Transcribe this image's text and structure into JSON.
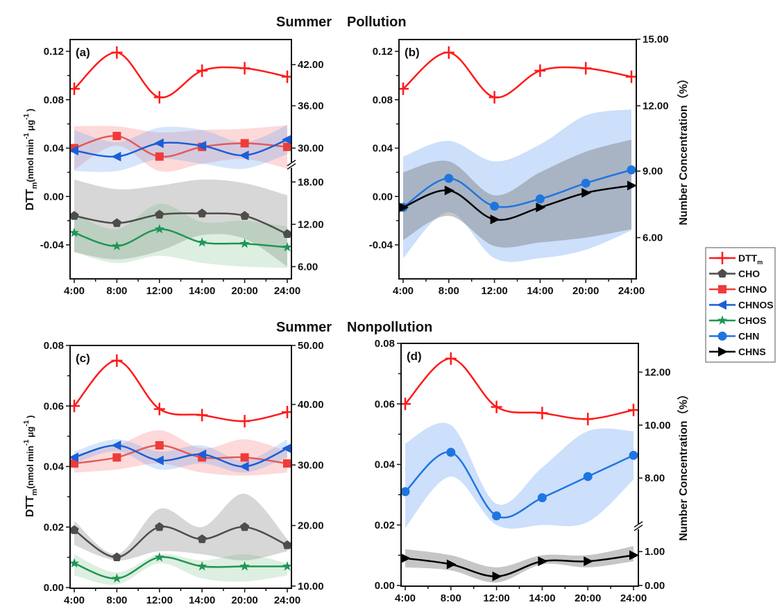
{
  "titles": {
    "top_season": "Summer",
    "top_condition": "Pollution",
    "bottom_season": "Summer",
    "bottom_condition": "Nonpollution"
  },
  "left_axis_label": {
    "main": "DTT",
    "sub": "m",
    "unit_open": "(nmol min",
    "unit_exp1": "-1",
    "unit_mid": "μg",
    "unit_exp2": "-1",
    "unit_close": ")"
  },
  "right_axis_label": "Number Concentration（%）",
  "legend": [
    {
      "name": "DTTm",
      "label": "DTT",
      "sub": "m",
      "color": "#ff1a1a",
      "marker": "plus"
    },
    {
      "name": "CHO",
      "label": "CHO",
      "color": "#4d4d4d",
      "marker": "pentagon"
    },
    {
      "name": "CHNO",
      "label": "CHNO",
      "color": "#ef3b3b",
      "marker": "square"
    },
    {
      "name": "CHNOS",
      "label": "CHNOS",
      "color": "#1a5fd6",
      "marker": "triangle-left"
    },
    {
      "name": "CHOS",
      "label": "CHOS",
      "color": "#1e9654",
      "marker": "star"
    },
    {
      "name": "CHN",
      "label": "CHN",
      "color": "#1f75e0",
      "marker": "circle"
    },
    {
      "name": "CHNS",
      "label": "CHNS",
      "color": "#000000",
      "marker": "triangle-right"
    }
  ],
  "chart_data": [
    {
      "type": "line",
      "panel": "(a)",
      "title": "Summer Pollution",
      "categories": [
        "4:00",
        "8:00",
        "12:00",
        "14:00",
        "20:00",
        "24:00"
      ],
      "ylim": [
        -0.07,
        0.13
      ],
      "yticks": [
        "0.12",
        "0.08",
        "0.04",
        "0.00",
        "-0.04"
      ],
      "ytick_values": [
        0.12,
        0.08,
        0.04,
        0.0,
        -0.04
      ],
      "right_ticks": [
        {
          "label": "42.00",
          "at_left": 0.109
        },
        {
          "label": "36.00",
          "at_left": 0.075
        },
        {
          "label": "30.00",
          "at_left": 0.04
        },
        {
          "label": "18.00",
          "at_left": 0.012
        },
        {
          "label": "12.00",
          "at_left": -0.023
        },
        {
          "label": "6.00",
          "at_left": -0.058
        }
      ],
      "right_break_at_left": 0.026,
      "series": [
        {
          "name": "CHO",
          "values": [
            -0.016,
            -0.022,
            -0.015,
            -0.014,
            -0.016,
            -0.031
          ],
          "band_lo": [
            -0.046,
            -0.052,
            -0.045,
            -0.032,
            -0.035,
            -0.058
          ],
          "band_hi": [
            0.014,
            0.006,
            0.009,
            0.014,
            0.011,
            0.001
          ]
        },
        {
          "name": "CHOS",
          "values": [
            -0.03,
            -0.041,
            -0.027,
            -0.038,
            -0.039,
            -0.042
          ],
          "band_lo": [
            -0.046,
            -0.055,
            -0.049,
            -0.055,
            -0.058,
            -0.059
          ],
          "band_hi": [
            -0.014,
            -0.027,
            -0.006,
            -0.021,
            -0.02,
            -0.025
          ]
        },
        {
          "name": "CHNO",
          "values": [
            0.04,
            0.05,
            0.033,
            0.041,
            0.044,
            0.041
          ],
          "band_lo": [
            0.022,
            0.042,
            0.021,
            0.027,
            0.031,
            0.023
          ],
          "band_hi": [
            0.058,
            0.058,
            0.053,
            0.055,
            0.056,
            0.059
          ]
        },
        {
          "name": "CHNOS",
          "values": [
            0.038,
            0.033,
            0.044,
            0.042,
            0.034,
            0.047
          ],
          "band_lo": [
            0.021,
            0.021,
            0.031,
            0.027,
            0.023,
            0.035
          ],
          "band_hi": [
            0.055,
            0.045,
            0.057,
            0.055,
            0.045,
            0.059
          ]
        },
        {
          "name": "DTTm",
          "values": [
            0.089,
            0.119,
            0.082,
            0.104,
            0.106,
            0.099
          ]
        }
      ]
    },
    {
      "type": "line",
      "panel": "(b)",
      "title": "Summer Pollution",
      "categories": [
        "4:00",
        "8:00",
        "12:00",
        "14:00",
        "20:00",
        "24:00"
      ],
      "ylim": [
        -0.07,
        0.13
      ],
      "yticks": [
        "0.12",
        "0.08",
        "0.04",
        "0.00",
        "-0.04"
      ],
      "ytick_values": [
        0.12,
        0.08,
        0.04,
        0.0,
        -0.04
      ],
      "right_ticks": [
        {
          "label": "15.00",
          "at_left": 0.13
        },
        {
          "label": "12.00",
          "at_left": 0.075
        },
        {
          "label": "9.00",
          "at_left": 0.021
        },
        {
          "label": "6.00",
          "at_left": -0.034
        }
      ],
      "series": [
        {
          "name": "CHN",
          "values": [
            -0.009,
            0.015,
            -0.008,
            -0.002,
            0.011,
            0.022
          ],
          "band_lo": [
            -0.051,
            -0.013,
            -0.051,
            -0.051,
            -0.044,
            -0.028
          ],
          "band_hi": [
            0.033,
            0.046,
            0.029,
            0.043,
            0.067,
            0.072
          ]
        },
        {
          "name": "CHNS",
          "values": [
            -0.009,
            0.005,
            -0.019,
            -0.009,
            0.003,
            0.009
          ],
          "band_lo": [
            -0.036,
            -0.016,
            -0.041,
            -0.038,
            -0.034,
            -0.027
          ],
          "band_hi": [
            0.02,
            0.029,
            0.001,
            0.02,
            0.037,
            0.047
          ]
        },
        {
          "name": "DTTm",
          "values": [
            0.089,
            0.119,
            0.082,
            0.104,
            0.106,
            0.099
          ]
        }
      ]
    },
    {
      "type": "line",
      "panel": "(c)",
      "title": "Summer Nonpollution",
      "categories": [
        "4:00",
        "8:00",
        "12:00",
        "14:00",
        "20:00",
        "24:00"
      ],
      "ylim": [
        0.0,
        0.08
      ],
      "yticks": [
        "0.08",
        "0.06",
        "0.04",
        "0.02",
        "0.00"
      ],
      "ytick_values": [
        0.08,
        0.06,
        0.04,
        0.02,
        0.0
      ],
      "right_ticks": [
        {
          "label": "50.00",
          "at_left": 0.08
        },
        {
          "label": "40.00",
          "at_left": 0.0605
        },
        {
          "label": "30.00",
          "at_left": 0.0405
        },
        {
          "label": "20.00",
          "at_left": 0.0205
        },
        {
          "label": "10.00",
          "at_left": 0.0005
        }
      ],
      "series": [
        {
          "name": "CHO",
          "values": [
            0.019,
            0.01,
            0.02,
            0.016,
            0.02,
            0.014
          ],
          "band_lo": [
            0.014,
            0.009,
            0.012,
            0.011,
            0.009,
            0.012
          ],
          "band_hi": [
            0.022,
            0.011,
            0.026,
            0.02,
            0.031,
            0.016
          ]
        },
        {
          "name": "CHOS",
          "values": [
            0.008,
            0.003,
            0.01,
            0.007,
            0.007,
            0.007
          ],
          "band_lo": [
            0.004,
            0.001,
            0.008,
            0.003,
            0.002,
            0.004
          ],
          "band_hi": [
            0.011,
            0.005,
            0.011,
            0.009,
            0.011,
            0.008
          ]
        },
        {
          "name": "CHNO",
          "values": [
            0.041,
            0.043,
            0.047,
            0.043,
            0.043,
            0.041
          ],
          "band_lo": [
            0.038,
            0.039,
            0.041,
            0.038,
            0.037,
            0.038
          ],
          "band_hi": [
            0.044,
            0.047,
            0.052,
            0.046,
            0.049,
            0.045
          ]
        },
        {
          "name": "CHNOS",
          "values": [
            0.043,
            0.047,
            0.042,
            0.044,
            0.04,
            0.046
          ],
          "band_lo": [
            0.041,
            0.045,
            0.039,
            0.041,
            0.038,
            0.043
          ],
          "band_hi": [
            0.045,
            0.049,
            0.045,
            0.047,
            0.042,
            0.049
          ]
        },
        {
          "name": "DTTm",
          "values": [
            0.06,
            0.075,
            0.059,
            0.057,
            0.055,
            0.058
          ]
        }
      ]
    },
    {
      "type": "line",
      "panel": "(d)",
      "title": "Summer Nonpollution",
      "categories": [
        "4:00",
        "8:00",
        "12:00",
        "14:00",
        "20:00",
        "24:00"
      ],
      "ylim": [
        0.0,
        0.08
      ],
      "yticks": [
        "0.08",
        "0.06",
        "0.04",
        "0.02",
        "0.00"
      ],
      "ytick_values": [
        0.08,
        0.06,
        0.04,
        0.02,
        0.0
      ],
      "right_ticks": [
        {
          "label": "12.00",
          "at_left": 0.0705
        },
        {
          "label": "10.00",
          "at_left": 0.053
        },
        {
          "label": "8.00",
          "at_left": 0.0355
        },
        {
          "label": "1.00",
          "at_left": 0.0112
        },
        {
          "label": "0.00",
          "at_left": 0.0
        }
      ],
      "right_break_at_left": 0.0195,
      "series": [
        {
          "name": "CHN",
          "values": [
            0.031,
            0.044,
            0.023,
            0.029,
            0.036,
            0.043
          ],
          "band_lo": [
            0.019,
            0.036,
            0.02,
            0.02,
            0.021,
            0.035
          ],
          "band_hi": [
            0.047,
            0.053,
            0.027,
            0.039,
            0.051,
            0.051
          ]
        },
        {
          "name": "CHNS",
          "values": [
            0.009,
            0.007,
            0.003,
            0.008,
            0.008,
            0.01
          ],
          "band_lo": [
            0.006,
            0.005,
            0.001,
            0.007,
            0.006,
            0.008
          ],
          "band_hi": [
            0.012,
            0.01,
            0.006,
            0.01,
            0.01,
            0.013
          ]
        },
        {
          "name": "DTTm",
          "values": [
            0.06,
            0.075,
            0.059,
            0.057,
            0.055,
            0.058
          ]
        }
      ]
    }
  ]
}
